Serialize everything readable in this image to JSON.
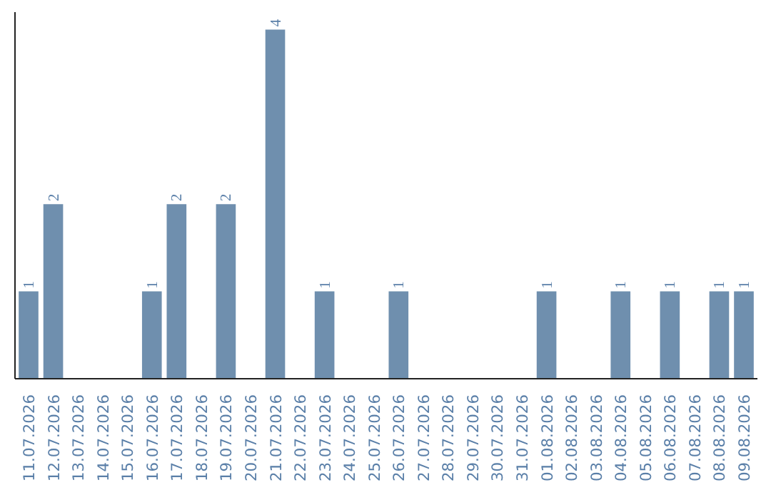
{
  "chart_data": {
    "type": "bar",
    "categories": [
      "11.07.2026",
      "12.07.2026",
      "13.07.2026",
      "14.07.2026",
      "15.07.2026",
      "16.07.2026",
      "17.07.2026",
      "18.07.2026",
      "19.07.2026",
      "20.07.2026",
      "21.07.2026",
      "22.07.2026",
      "23.07.2026",
      "24.07.2026",
      "25.07.2026",
      "26.07.2026",
      "27.07.2026",
      "28.07.2026",
      "29.07.2026",
      "30.07.2026",
      "31.07.2026",
      "01.08.2026",
      "02.08.2026",
      "03.08.2026",
      "04.08.2026",
      "05.08.2026",
      "06.08.2026",
      "07.08.2026",
      "08.08.2026",
      "09.08.2026"
    ],
    "values": [
      1,
      2,
      0,
      0,
      0,
      1,
      2,
      0,
      2,
      0,
      4,
      0,
      1,
      0,
      0,
      1,
      0,
      0,
      0,
      0,
      0,
      1,
      0,
      0,
      1,
      0,
      1,
      0,
      1,
      1
    ],
    "value_labels": [
      "1",
      "2",
      null,
      null,
      null,
      "1",
      "2",
      null,
      "2",
      null,
      "4",
      null,
      "1",
      null,
      null,
      "1",
      null,
      null,
      null,
      null,
      null,
      "1",
      null,
      null,
      "1",
      null,
      "1",
      null,
      "1",
      "1"
    ],
    "color": "#6f8fae",
    "grid": false,
    "tick_labels": "x"
  }
}
